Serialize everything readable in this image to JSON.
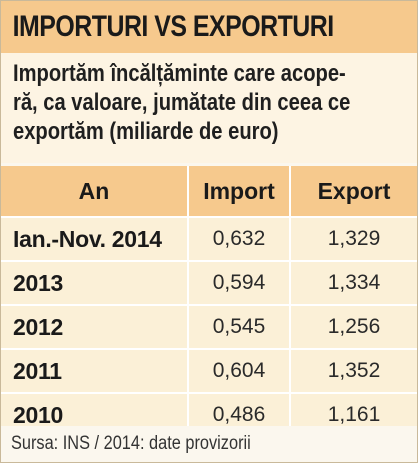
{
  "header": {
    "title": "IMPORTURI VS EXPORTURI"
  },
  "subtitle": {
    "lines": [
      "Importăm încălțăminte care acope-",
      "ră, ca valoare, jumătate din ceea ce",
      "exportăm (miliarde de euro)"
    ]
  },
  "table": {
    "columns": [
      "An",
      "Import",
      "Export"
    ],
    "rows": [
      {
        "an": "Ian.-Nov. 2014",
        "import": "0,632",
        "export": "1,329"
      },
      {
        "an": "2013",
        "import": "0,594",
        "export": "1,334"
      },
      {
        "an": "2012",
        "import": "0,545",
        "export": "1,256"
      },
      {
        "an": "2011",
        "import": "0,604",
        "export": "1,352"
      },
      {
        "an": "2010",
        "import": "0,486",
        "export": "1,161"
      }
    ]
  },
  "footer": {
    "source": "Sursa: INS / 2014: date provizorii"
  },
  "colors": {
    "accent": "#f6c98d",
    "row_background": "#fbf0d7",
    "panel_background": "#fdf4e3",
    "separator": "#ffffff"
  }
}
